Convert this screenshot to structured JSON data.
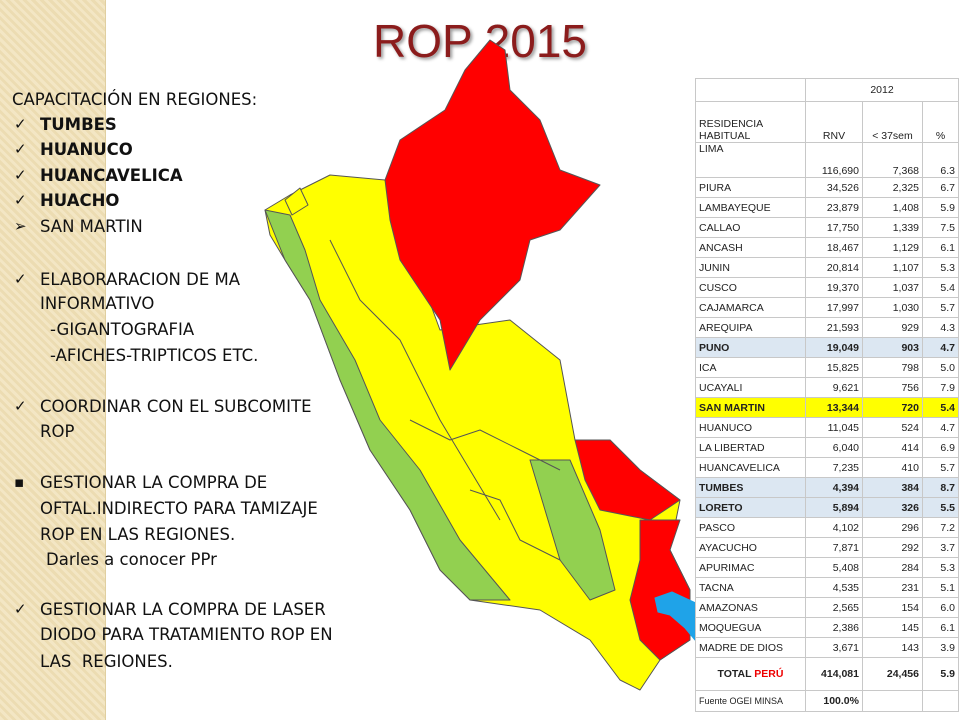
{
  "title": "ROP 2015",
  "notes": {
    "heading": "CAPACITACIÓN EN REGIONES:",
    "items": [
      {
        "lines": [
          "TUMBES"
        ]
      },
      {
        "lines": [
          "HUANUCO"
        ]
      },
      {
        "lines": [
          "HUANCAVELICA"
        ]
      },
      {
        "lines": [
          "HUACHO"
        ]
      },
      {
        "lines": [
          "SAN MARTIN"
        ]
      },
      {
        "lines": [
          "ELABORARACION DE MA",
          "INFORMATIVO",
          "-GIGANTOGRAFIA",
          "-AFICHES-TRIPTICOS ETC."
        ]
      },
      {
        "lines": [
          "COORDINAR CON EL SUBCOMITE",
          "ROP"
        ]
      },
      {
        "lines": [
          "GESTIONAR LA COMPRA DE",
          "OFTAL.INDIRECTO PARA TAMIZAJE",
          "ROP EN LAS REGIONES.",
          "Darles a conocer PPr"
        ]
      },
      {
        "lines": [
          "GESTIONAR LA COMPRA DE LASER",
          "DIODO PARA TRATAMIENTO ROP EN",
          "LAS  REGIONES."
        ]
      }
    ]
  },
  "table": {
    "year": "2012",
    "columns": [
      "RESIDENCIA HABITUAL",
      "RNV",
      "< 37sem",
      "%"
    ],
    "rows": [
      [
        "LIMA",
        "116,690",
        "7,368",
        "6.3"
      ],
      [
        "PIURA",
        "34,526",
        "2,325",
        "6.7"
      ],
      [
        "LAMBAYEQUE",
        "23,879",
        "1,408",
        "5.9"
      ],
      [
        "CALLAO",
        "17,750",
        "1,339",
        "7.5"
      ],
      [
        "ANCASH",
        "18,467",
        "1,129",
        "6.1"
      ],
      [
        "JUNIN",
        "20,814",
        "1,107",
        "5.3"
      ],
      [
        "CUSCO",
        "19,370",
        "1,037",
        "5.4"
      ],
      [
        "CAJAMARCA",
        "17,997",
        "1,030",
        "5.7"
      ],
      [
        "AREQUIPA",
        "21,593",
        "929",
        "4.3"
      ],
      [
        "PUNO",
        "19,049",
        "903",
        "4.7"
      ],
      [
        "ICA",
        "15,825",
        "798",
        "5.0"
      ],
      [
        "UCAYALI",
        "9,621",
        "756",
        "7.9"
      ],
      [
        "SAN MARTIN",
        "13,344",
        "720",
        "5.4"
      ],
      [
        "HUANUCO",
        "11,045",
        "524",
        "4.7"
      ],
      [
        "LA LIBERTAD",
        "6,040",
        "414",
        "6.9"
      ],
      [
        "HUANCAVELICA",
        "7,235",
        "410",
        "5.7"
      ],
      [
        "TUMBES",
        "4,394",
        "384",
        "8.7"
      ],
      [
        "LORETO",
        "5,894",
        "326",
        "5.5"
      ],
      [
        "PASCO",
        "4,102",
        "296",
        "7.2"
      ],
      [
        "AYACUCHO",
        "7,871",
        "292",
        "3.7"
      ],
      [
        "APURIMAC",
        "5,408",
        "284",
        "5.3"
      ],
      [
        "TACNA",
        "4,535",
        "231",
        "5.1"
      ],
      [
        "AMAZONAS",
        "2,565",
        "154",
        "6.0"
      ],
      [
        "MOQUEGUA",
        "2,386",
        "145",
        "6.1"
      ],
      [
        "MADRE DE DIOS",
        "3,671",
        "143",
        "3.9"
      ]
    ],
    "total": {
      "label": "TOTAL",
      "country": "PERÚ",
      "rnv": "414,081",
      "lt37": "24,456",
      "pct": "5.9"
    },
    "footer": {
      "source": "Fuente OGEI MINSA",
      "share": "100.0%"
    }
  }
}
